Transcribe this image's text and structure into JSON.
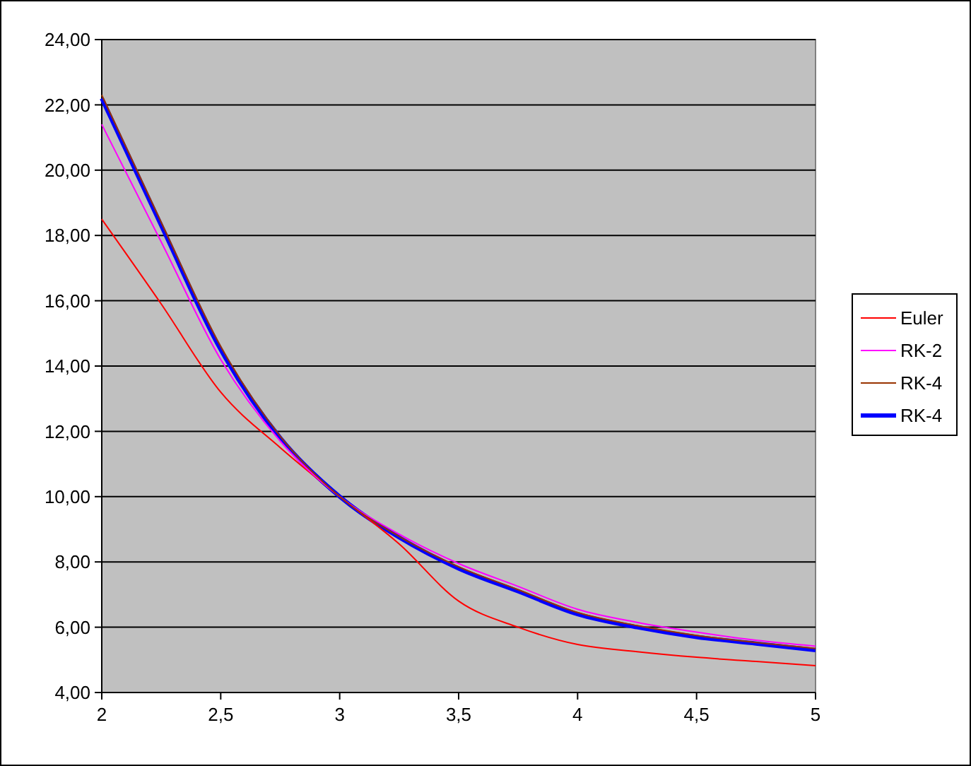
{
  "chart_data": {
    "type": "line",
    "x": [
      2,
      2.25,
      2.5,
      2.75,
      3,
      3.25,
      3.5,
      3.75,
      4,
      4.25,
      4.5,
      4.75,
      5
    ],
    "series": [
      {
        "name": "Euler",
        "color": "#ff0000",
        "values": [
          18.5,
          15.9,
          13.2,
          11.5,
          10,
          8.55,
          6.8,
          6.0,
          5.47,
          5.25,
          5.08,
          4.95,
          4.82
        ]
      },
      {
        "name": "RK-2",
        "color": "#ff00ff",
        "values": [
          21.4,
          17.8,
          14.2,
          11.7,
          10,
          8.85,
          7.95,
          7.25,
          6.55,
          6.15,
          5.85,
          5.6,
          5.42
        ]
      },
      {
        "name": "RK-4",
        "color": "#993300",
        "values": [
          22.3,
          18.4,
          14.6,
          11.85,
          10,
          8.78,
          7.85,
          7.15,
          6.45,
          6.05,
          5.75,
          5.53,
          5.35
        ]
      },
      {
        "name": "RK-4",
        "color": "#0000ff",
        "values": [
          22.2,
          18.3,
          14.5,
          11.8,
          10,
          8.75,
          7.8,
          7.1,
          6.4,
          6.0,
          5.7,
          5.5,
          5.3
        ]
      }
    ],
    "xlim": [
      2,
      5
    ],
    "xticks": [
      2,
      {
        "value": 2.5,
        "label": "2,5"
      },
      3,
      {
        "value": 3.5,
        "label": "3,5"
      },
      4,
      {
        "value": 4.5,
        "label": "4,5"
      },
      5
    ],
    "ylim": [
      4,
      24
    ],
    "yticks": [
      {
        "value": 4,
        "label": "4,00"
      },
      {
        "value": 6,
        "label": "6,00"
      },
      {
        "value": 8,
        "label": "8,00"
      },
      {
        "value": 10,
        "label": "10,00"
      },
      {
        "value": 12,
        "label": "12,00"
      },
      {
        "value": 14,
        "label": "14,00"
      },
      {
        "value": 16,
        "label": "16,00"
      },
      {
        "value": 18,
        "label": "18,00"
      },
      {
        "value": 20,
        "label": "20,00"
      },
      {
        "value": 22,
        "label": "22,00"
      },
      {
        "value": 24,
        "label": "24,00"
      }
    ],
    "grid": "y",
    "legend": "right",
    "marker": "none",
    "line_style": "solid"
  }
}
